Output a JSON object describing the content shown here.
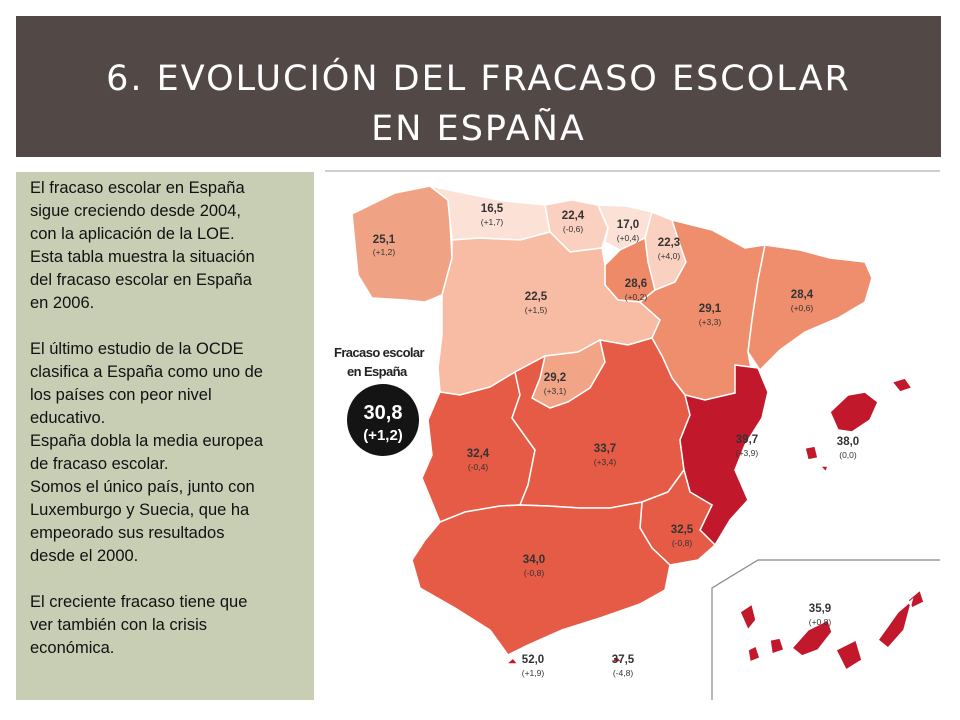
{
  "slide": {
    "title_line1": "6. EVOLUCIÓN DEL FRACASO ESCOLAR",
    "title_line2": "EN ESPAÑA"
  },
  "sidebar": {
    "paragraphs": [
      "El fracaso escolar en España\nsigue creciendo desde 2004,\ncon la aplicación de la LOE.\nEsta tabla muestra la situación\ndel fracaso escolar en España\nen 2006.",
      "El último estudio de la OCDE\nclasifica a España como uno de\nlos países con peor nivel\neducativo.\n España dobla la media europea\nde fracaso escolar.\nSomos el único país, junto con\nLuxemburgo y Suecia, que ha\nempeorado sus resultados\ndesde el 2000.",
      "El creciente fracaso tiene que\nver también con la crisis\neconómica."
    ]
  },
  "map": {
    "legend": {
      "title_line1": "Fracaso escolar",
      "title_line2": "en España",
      "value": "30,8",
      "change": "(+1,2)"
    },
    "regions": [
      {
        "id": "galicia",
        "value": "25,1",
        "change": "(+1,2)",
        "color": "#f0a384"
      },
      {
        "id": "asturias",
        "value": "16,5",
        "change": "(+1,7)",
        "color": "#fbe1d6"
      },
      {
        "id": "cantabria",
        "value": "22,4",
        "change": "(-0,6)",
        "color": "#fad0c0"
      },
      {
        "id": "pais-vasco",
        "value": "17,0",
        "change": "(+0,4)",
        "color": "#fbe1d6"
      },
      {
        "id": "navarra",
        "value": "22,3",
        "change": "(+4,0)",
        "color": "#fad0c0"
      },
      {
        "id": "la-rioja",
        "value": "28,6",
        "change": "(+0,2)",
        "color": "#ee8a68"
      },
      {
        "id": "castilla-y-leon",
        "value": "22,5",
        "change": "(+1,5)",
        "color": "#f7bca3"
      },
      {
        "id": "aragon",
        "value": "29,1",
        "change": "(+3,3)",
        "color": "#ef8e6d"
      },
      {
        "id": "cataluna",
        "value": "28,4",
        "change": "(+0,6)",
        "color": "#ef8e6d"
      },
      {
        "id": "madrid",
        "value": "29,2",
        "change": "(+3,1)",
        "color": "#f2a486"
      },
      {
        "id": "extremadura",
        "value": "32,4",
        "change": "(-0,4)",
        "color": "#e55b45"
      },
      {
        "id": "castilla-la-mancha",
        "value": "33,7",
        "change": "(+3,4)",
        "color": "#e55b45"
      },
      {
        "id": "comunidad-valenciana",
        "value": "39,7",
        "change": "(+3,9)",
        "color": "#c2182c"
      },
      {
        "id": "baleares",
        "value": "38,0",
        "change": "(0,0)",
        "color": "#c2182c"
      },
      {
        "id": "murcia",
        "value": "32,5",
        "change": "(-0,8)",
        "color": "#e55b45"
      },
      {
        "id": "andalucia",
        "value": "34,0",
        "change": "(-0,8)",
        "color": "#e55b45"
      },
      {
        "id": "ceuta",
        "value": "52,0",
        "change": "(+1,9)",
        "color": "#c2182c"
      },
      {
        "id": "melilla",
        "value": "37,5",
        "change": "(-4,8)",
        "color": "#c2182c"
      },
      {
        "id": "canarias",
        "value": "35,9",
        "change": "(+0,8)",
        "color": "#c2182c"
      }
    ]
  }
}
